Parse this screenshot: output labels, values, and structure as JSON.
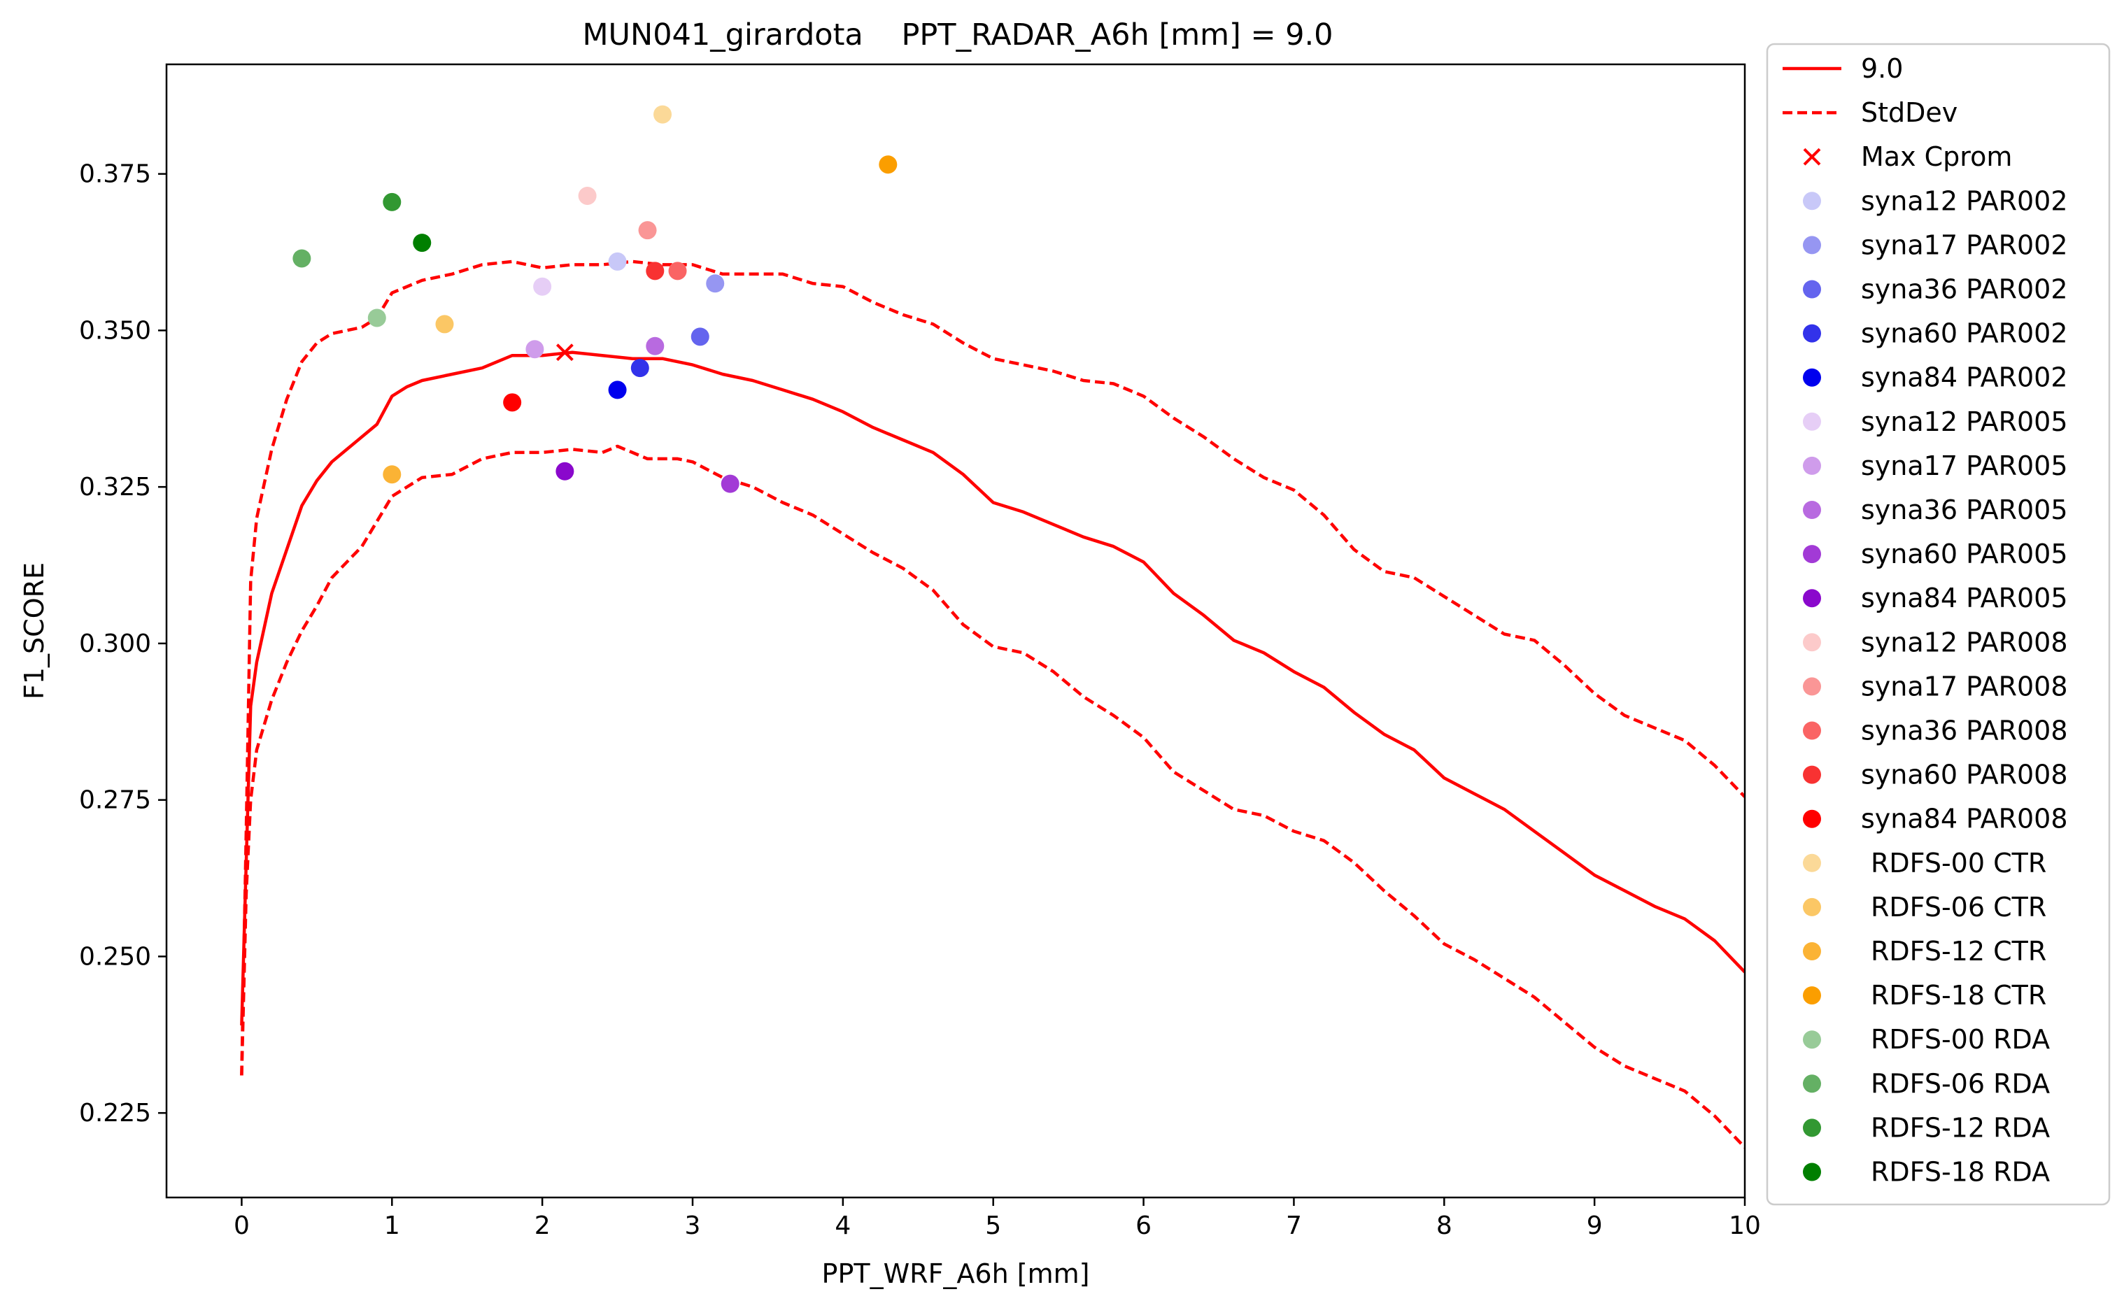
{
  "chart_data": {
    "type": "line",
    "title": "MUN041_girardota    PPT_RADAR_A6h [mm] = 9.0",
    "xlabel": "PPT_WRF_A6h [mm]",
    "ylabel": "F1_SCORE",
    "xlim": [
      -0.5,
      10
    ],
    "ylim": [
      0.2115,
      0.3925
    ],
    "xticks": [
      0,
      1,
      2,
      3,
      4,
      5,
      6,
      7,
      8,
      9,
      10
    ],
    "yticks": [
      0.225,
      0.25,
      0.275,
      0.3,
      0.325,
      0.35,
      0.375
    ],
    "ytick_labels": [
      "0.225",
      "0.250",
      "0.275",
      "0.300",
      "0.325",
      "0.350",
      "0.375"
    ],
    "grid": false,
    "legend_position": "outside-right",
    "lines": [
      {
        "name": "9.0",
        "style": "solid",
        "color": "#ff0000",
        "points": [
          [
            0,
            0.239
          ],
          [
            0.03,
            0.265
          ],
          [
            0.06,
            0.29
          ],
          [
            0.1,
            0.297
          ],
          [
            0.2,
            0.308
          ],
          [
            0.3,
            0.315
          ],
          [
            0.4,
            0.322
          ],
          [
            0.5,
            0.326
          ],
          [
            0.6,
            0.329
          ],
          [
            0.7,
            0.331
          ],
          [
            0.8,
            0.333
          ],
          [
            0.9,
            0.335
          ],
          [
            1.0,
            0.3395
          ],
          [
            1.1,
            0.341
          ],
          [
            1.2,
            0.342
          ],
          [
            1.4,
            0.343
          ],
          [
            1.6,
            0.344
          ],
          [
            1.8,
            0.346
          ],
          [
            2.0,
            0.346
          ],
          [
            2.2,
            0.3465
          ],
          [
            2.4,
            0.346
          ],
          [
            2.6,
            0.3455
          ],
          [
            2.8,
            0.3455
          ],
          [
            3.0,
            0.3445
          ],
          [
            3.2,
            0.343
          ],
          [
            3.4,
            0.342
          ],
          [
            3.6,
            0.3405
          ],
          [
            3.8,
            0.339
          ],
          [
            4.0,
            0.337
          ],
          [
            4.2,
            0.3345
          ],
          [
            4.4,
            0.3325
          ],
          [
            4.6,
            0.3305
          ],
          [
            4.8,
            0.327
          ],
          [
            5.0,
            0.3225
          ],
          [
            5.2,
            0.321
          ],
          [
            5.4,
            0.319
          ],
          [
            5.6,
            0.317
          ],
          [
            5.8,
            0.3155
          ],
          [
            6.0,
            0.313
          ],
          [
            6.2,
            0.308
          ],
          [
            6.4,
            0.3045
          ],
          [
            6.6,
            0.3005
          ],
          [
            6.8,
            0.2985
          ],
          [
            7.0,
            0.2955
          ],
          [
            7.2,
            0.293
          ],
          [
            7.4,
            0.289
          ],
          [
            7.6,
            0.2855
          ],
          [
            7.8,
            0.283
          ],
          [
            8.0,
            0.2785
          ],
          [
            8.2,
            0.276
          ],
          [
            8.4,
            0.2735
          ],
          [
            8.6,
            0.27
          ],
          [
            8.8,
            0.2665
          ],
          [
            9.0,
            0.263
          ],
          [
            9.2,
            0.2605
          ],
          [
            9.4,
            0.258
          ],
          [
            9.6,
            0.256
          ],
          [
            9.8,
            0.2525
          ],
          [
            10.0,
            0.2475
          ]
        ]
      },
      {
        "name": "StdDev",
        "style": "dashed",
        "color": "#ff0000",
        "points": [
          [
            0,
            0.231
          ],
          [
            0.03,
            0.27
          ],
          [
            0.06,
            0.31
          ],
          [
            0.1,
            0.32
          ],
          [
            0.2,
            0.331
          ],
          [
            0.3,
            0.339
          ],
          [
            0.4,
            0.345
          ],
          [
            0.5,
            0.348
          ],
          [
            0.6,
            0.3495
          ],
          [
            0.7,
            0.35
          ],
          [
            0.8,
            0.3505
          ],
          [
            0.9,
            0.352
          ],
          [
            1.0,
            0.356
          ],
          [
            1.2,
            0.358
          ],
          [
            1.4,
            0.359
          ],
          [
            1.6,
            0.3605
          ],
          [
            1.8,
            0.361
          ],
          [
            2.0,
            0.36
          ],
          [
            2.2,
            0.3605
          ],
          [
            2.4,
            0.3605
          ],
          [
            2.6,
            0.361
          ],
          [
            2.8,
            0.3605
          ],
          [
            3.0,
            0.3605
          ],
          [
            3.2,
            0.359
          ],
          [
            3.4,
            0.359
          ],
          [
            3.6,
            0.359
          ],
          [
            3.8,
            0.3575
          ],
          [
            4.0,
            0.357
          ],
          [
            4.2,
            0.3545
          ],
          [
            4.4,
            0.3525
          ],
          [
            4.6,
            0.351
          ],
          [
            4.8,
            0.348
          ],
          [
            5.0,
            0.3455
          ],
          [
            5.2,
            0.3445
          ],
          [
            5.4,
            0.3435
          ],
          [
            5.6,
            0.342
          ],
          [
            5.8,
            0.3415
          ],
          [
            6.0,
            0.3395
          ],
          [
            6.2,
            0.336
          ],
          [
            6.4,
            0.333
          ],
          [
            6.6,
            0.3295
          ],
          [
            6.8,
            0.3265
          ],
          [
            7.0,
            0.3245
          ],
          [
            7.2,
            0.3205
          ],
          [
            7.4,
            0.315
          ],
          [
            7.6,
            0.3115
          ],
          [
            7.8,
            0.3105
          ],
          [
            8.0,
            0.3075
          ],
          [
            8.2,
            0.3045
          ],
          [
            8.4,
            0.3015
          ],
          [
            8.6,
            0.3005
          ],
          [
            8.8,
            0.2965
          ],
          [
            9.0,
            0.292
          ],
          [
            9.2,
            0.2885
          ],
          [
            9.4,
            0.2865
          ],
          [
            9.6,
            0.2845
          ],
          [
            9.8,
            0.2805
          ],
          [
            10.0,
            0.2755
          ]
        ]
      },
      {
        "name": "",
        "style": "dashed",
        "color": "#ff0000",
        "points": [
          [
            0,
            0.231
          ],
          [
            0.03,
            0.26
          ],
          [
            0.06,
            0.275
          ],
          [
            0.1,
            0.283
          ],
          [
            0.2,
            0.291
          ],
          [
            0.3,
            0.297
          ],
          [
            0.4,
            0.302
          ],
          [
            0.5,
            0.306
          ],
          [
            0.6,
            0.3105
          ],
          [
            0.7,
            0.313
          ],
          [
            0.8,
            0.3155
          ],
          [
            0.9,
            0.3195
          ],
          [
            1.0,
            0.3235
          ],
          [
            1.1,
            0.325
          ],
          [
            1.2,
            0.3265
          ],
          [
            1.4,
            0.327
          ],
          [
            1.6,
            0.3295
          ],
          [
            1.8,
            0.3305
          ],
          [
            2.0,
            0.3305
          ],
          [
            2.2,
            0.331
          ],
          [
            2.4,
            0.3305
          ],
          [
            2.5,
            0.3315
          ],
          [
            2.7,
            0.3295
          ],
          [
            2.9,
            0.3295
          ],
          [
            3.0,
            0.329
          ],
          [
            3.2,
            0.3265
          ],
          [
            3.4,
            0.325
          ],
          [
            3.6,
            0.3225
          ],
          [
            3.8,
            0.3205
          ],
          [
            4.0,
            0.3175
          ],
          [
            4.2,
            0.3145
          ],
          [
            4.4,
            0.312
          ],
          [
            4.6,
            0.3085
          ],
          [
            4.8,
            0.303
          ],
          [
            5.0,
            0.2995
          ],
          [
            5.2,
            0.2985
          ],
          [
            5.4,
            0.2955
          ],
          [
            5.6,
            0.2915
          ],
          [
            5.8,
            0.2885
          ],
          [
            6.0,
            0.285
          ],
          [
            6.2,
            0.2795
          ],
          [
            6.4,
            0.2765
          ],
          [
            6.6,
            0.2735
          ],
          [
            6.8,
            0.2725
          ],
          [
            7.0,
            0.27
          ],
          [
            7.2,
            0.2685
          ],
          [
            7.4,
            0.265
          ],
          [
            7.6,
            0.2605
          ],
          [
            7.8,
            0.2565
          ],
          [
            8.0,
            0.252
          ],
          [
            8.2,
            0.2495
          ],
          [
            8.4,
            0.2465
          ],
          [
            8.6,
            0.2435
          ],
          [
            8.8,
            0.2395
          ],
          [
            9.0,
            0.2355
          ],
          [
            9.2,
            0.2325
          ],
          [
            9.4,
            0.2305
          ],
          [
            9.6,
            0.2285
          ],
          [
            9.8,
            0.2245
          ],
          [
            10.0,
            0.2195
          ]
        ]
      }
    ],
    "max_marker": {
      "name": "Max Cprom",
      "x": 2.15,
      "y": 0.3465,
      "color": "#ff0000"
    },
    "series": [
      {
        "name": "syna12 PAR002",
        "color": "#c8c8f8",
        "x": 2.5,
        "y": 0.361
      },
      {
        "name": "syna17 PAR002",
        "color": "#9696f2",
        "x": 3.15,
        "y": 0.3575
      },
      {
        "name": "syna36 PAR002",
        "color": "#6464ee",
        "x": 3.05,
        "y": 0.349
      },
      {
        "name": "syna60 PAR002",
        "color": "#3232ea",
        "x": 2.65,
        "y": 0.344
      },
      {
        "name": "syna84 PAR002",
        "color": "#0000ee",
        "x": 2.5,
        "y": 0.3405
      },
      {
        "name": "syna12 PAR005",
        "color": "#e6cef6",
        "x": 2.0,
        "y": 0.357
      },
      {
        "name": "syna17 PAR005",
        "color": "#cf9ceb",
        "x": 1.95,
        "y": 0.347
      },
      {
        "name": "syna36 PAR005",
        "color": "#b86ae0",
        "x": 2.75,
        "y": 0.3475
      },
      {
        "name": "syna60 PAR005",
        "color": "#a23ad6",
        "x": 3.25,
        "y": 0.3255
      },
      {
        "name": "syna84 PAR005",
        "color": "#8a08cc",
        "x": 2.15,
        "y": 0.3275
      },
      {
        "name": "syna12 PAR008",
        "color": "#fccaca",
        "x": 2.3,
        "y": 0.3715
      },
      {
        "name": "syna17 PAR008",
        "color": "#fa9696",
        "x": 2.7,
        "y": 0.366
      },
      {
        "name": "syna36 PAR008",
        "color": "#fa6464",
        "x": 2.9,
        "y": 0.3595
      },
      {
        "name": "syna60 PAR008",
        "color": "#f83232",
        "x": 2.75,
        "y": 0.3595
      },
      {
        "name": "syna84 PAR008",
        "color": "#ff0000",
        "x": 1.8,
        "y": 0.3385
      },
      {
        "name": "RDFS-00 CTR",
        "color": "#fbd998",
        "x": 2.8,
        "y": 0.3845
      },
      {
        "name": "RDFS-06 CTR",
        "color": "#fbc765",
        "x": 1.35,
        "y": 0.351
      },
      {
        "name": "RDFS-12 CTR",
        "color": "#fbb335",
        "x": 1.0,
        "y": 0.327
      },
      {
        "name": "RDFS-18 CTR",
        "color": "#fb9e00",
        "x": 4.3,
        "y": 0.3765
      },
      {
        "name": "RDFS-00 RDA",
        "color": "#98cb98",
        "x": 0.9,
        "y": 0.352
      },
      {
        "name": "RDFS-06 RDA",
        "color": "#64b064",
        "x": 0.4,
        "y": 0.3615
      },
      {
        "name": "RDFS-12 RDA",
        "color": "#329832",
        "x": 1.0,
        "y": 0.3705
      },
      {
        "name": "RDFS-18 RDA",
        "color": "#007f00",
        "x": 1.2,
        "y": 0.364
      }
    ]
  }
}
